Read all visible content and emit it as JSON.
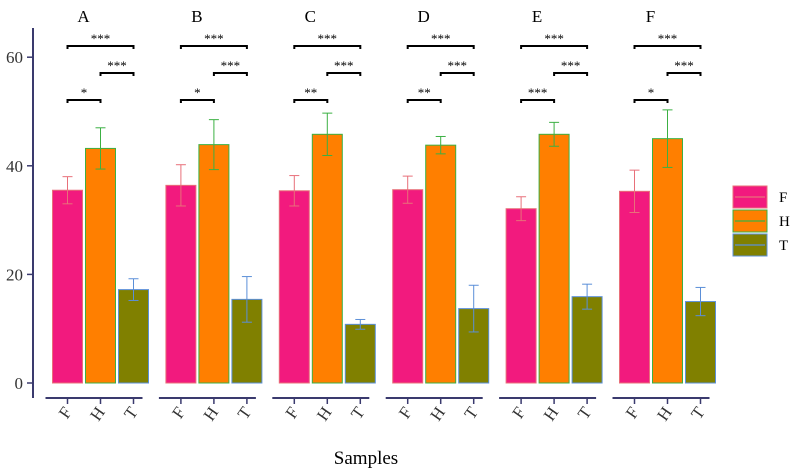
{
  "chart_data": {
    "type": "bar",
    "xlabel": "Samples",
    "ylabel": "",
    "ylim": [
      0,
      64
    ],
    "yticks": [
      "0",
      "20",
      "40",
      "60"
    ],
    "ytick_values": [
      0,
      20,
      40,
      60
    ],
    "categories": [
      "F",
      "H",
      "T"
    ],
    "legend": {
      "position": "right",
      "entries": [
        "F",
        "H",
        "T"
      ]
    },
    "colors": {
      "F": {
        "fill": "#F21A7E",
        "edge": "#E8707A"
      },
      "H": {
        "fill": "#FF7F00",
        "edge": "#3CB043"
      },
      "T": {
        "fill": "#808000",
        "edge": "#5B8FD8"
      }
    },
    "grid": false,
    "panels": [
      {
        "title": "A",
        "values": [
          35.5,
          43.2,
          17.2
        ],
        "errors": [
          2.5,
          3.8,
          2.0
        ],
        "significance": [
          {
            "from": "F",
            "to": "T",
            "label": "***"
          },
          {
            "from": "H",
            "to": "T",
            "label": "***"
          },
          {
            "from": "F",
            "to": "H",
            "label": "*"
          }
        ]
      },
      {
        "title": "B",
        "values": [
          36.4,
          43.9,
          15.4
        ],
        "errors": [
          3.8,
          4.6,
          4.2
        ],
        "significance": [
          {
            "from": "F",
            "to": "T",
            "label": "***"
          },
          {
            "from": "H",
            "to": "T",
            "label": "***"
          },
          {
            "from": "F",
            "to": "H",
            "label": "*"
          }
        ]
      },
      {
        "title": "C",
        "values": [
          35.4,
          45.8,
          10.8
        ],
        "errors": [
          2.8,
          3.9,
          0.9
        ],
        "significance": [
          {
            "from": "F",
            "to": "T",
            "label": "***"
          },
          {
            "from": "H",
            "to": "T",
            "label": "***"
          },
          {
            "from": "F",
            "to": "H",
            "label": "**"
          }
        ]
      },
      {
        "title": "D",
        "values": [
          35.6,
          43.8,
          13.7
        ],
        "errors": [
          2.5,
          1.6,
          4.3
        ],
        "significance": [
          {
            "from": "F",
            "to": "T",
            "label": "***"
          },
          {
            "from": "H",
            "to": "T",
            "label": "***"
          },
          {
            "from": "F",
            "to": "H",
            "label": "**"
          }
        ]
      },
      {
        "title": "E",
        "values": [
          32.1,
          45.8,
          15.9
        ],
        "errors": [
          2.2,
          2.2,
          2.3
        ],
        "significance": [
          {
            "from": "F",
            "to": "T",
            "label": "***"
          },
          {
            "from": "H",
            "to": "T",
            "label": "***"
          },
          {
            "from": "F",
            "to": "H",
            "label": "***"
          }
        ]
      },
      {
        "title": "F",
        "values": [
          35.3,
          45.0,
          15.0
        ],
        "errors": [
          3.9,
          5.3,
          2.6
        ],
        "significance": [
          {
            "from": "F",
            "to": "T",
            "label": "***"
          },
          {
            "from": "H",
            "to": "T",
            "label": "***"
          },
          {
            "from": "F",
            "to": "H",
            "label": "*"
          }
        ]
      }
    ]
  }
}
